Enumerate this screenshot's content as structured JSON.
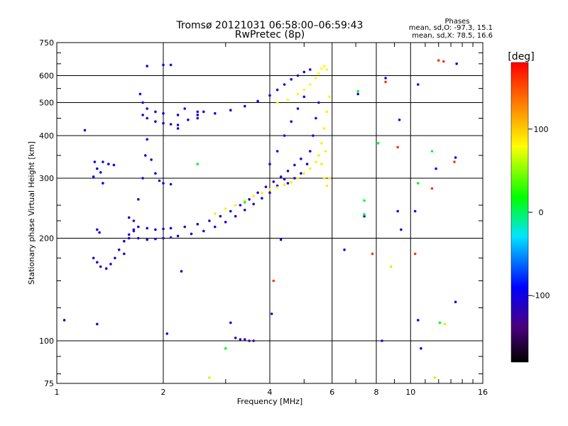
{
  "chart_data": {
    "type": "scatter",
    "title": "Tromsø 20121031 06:58:00–06:59:43",
    "subtitle": "RwPretec (8p)",
    "xlabel": "Frequency [MHz]",
    "ylabel": "Stationary phase Virtual Height [km]",
    "x_scale": "log",
    "y_scale": "log",
    "xlim": [
      1,
      16
    ],
    "ylim": [
      75,
      750
    ],
    "x_ticks": [
      1,
      2,
      4,
      6,
      8,
      10,
      16
    ],
    "x_tick_labels": [
      "1",
      "2",
      "4",
      "6",
      "8",
      "10",
      "16"
    ],
    "y_ticks": [
      75,
      100,
      200,
      300,
      400,
      500,
      600,
      750
    ],
    "y_tick_labels": [
      "75",
      "100",
      "200",
      "300",
      "400",
      "500",
      "600",
      "750"
    ],
    "grid": true,
    "phases_box": {
      "heading": "Phases",
      "line_o": "mean, sd,O: -97.3, 15.1",
      "line_x": "mean, sd,X: 78.5, 16.6"
    },
    "colorbar": {
      "label": "[deg]",
      "range": [
        -180,
        180
      ],
      "ticks": [
        100,
        0,
        -100
      ],
      "tick_labels": [
        "100",
        "0",
        "-100"
      ]
    },
    "series": [
      {
        "phase": -110,
        "points": [
          [
            1.27,
            175
          ],
          [
            1.3,
            170
          ],
          [
            1.33,
            165
          ],
          [
            1.38,
            163
          ],
          [
            1.42,
            168
          ],
          [
            1.46,
            175
          ],
          [
            1.5,
            185
          ],
          [
            1.55,
            196
          ],
          [
            1.6,
            205
          ],
          [
            1.65,
            212
          ],
          [
            1.7,
            216
          ],
          [
            1.8,
            214
          ],
          [
            1.9,
            212
          ],
          [
            2.0,
            213
          ],
          [
            2.1,
            214
          ],
          [
            2.3,
            216
          ],
          [
            2.5,
            220
          ],
          [
            2.7,
            225
          ],
          [
            2.9,
            232
          ],
          [
            3.1,
            240
          ],
          [
            3.3,
            250
          ],
          [
            3.5,
            260
          ],
          [
            3.7,
            272
          ],
          [
            3.9,
            283
          ],
          [
            4.1,
            293
          ],
          [
            4.3,
            303
          ],
          [
            4.5,
            315
          ],
          [
            4.7,
            328
          ],
          [
            4.9,
            342
          ]
        ]
      },
      {
        "phase": -105,
        "points": [
          [
            1.55,
            180
          ],
          [
            1.6,
            200
          ],
          [
            1.65,
            225
          ],
          [
            1.7,
            260
          ],
          [
            1.75,
            300
          ],
          [
            1.78,
            350
          ],
          [
            1.8,
            390
          ],
          [
            1.85,
            340
          ],
          [
            1.9,
            310
          ],
          [
            1.95,
            295
          ],
          [
            2.0,
            290
          ],
          [
            2.1,
            288
          ]
        ]
      },
      {
        "phase": -108,
        "points": [
          [
            1.6,
            230
          ],
          [
            1.65,
            210
          ],
          [
            1.7,
            200
          ],
          [
            1.8,
            198
          ],
          [
            1.9,
            199
          ],
          [
            2.0,
            200
          ],
          [
            2.1,
            201
          ],
          [
            2.2,
            203
          ],
          [
            2.4,
            206
          ],
          [
            2.6,
            210
          ],
          [
            2.8,
            216
          ],
          [
            3.0,
            223
          ],
          [
            3.2,
            232
          ],
          [
            3.4,
            242
          ],
          [
            3.6,
            252
          ],
          [
            3.8,
            262
          ],
          [
            4.0,
            272
          ],
          [
            4.2,
            285
          ],
          [
            4.4,
            298
          ]
        ]
      },
      {
        "phase": -100,
        "points": [
          [
            1.72,
            530
          ],
          [
            1.75,
            500
          ],
          [
            1.8,
            480
          ],
          [
            1.9,
            470
          ],
          [
            2.0,
            465
          ],
          [
            2.2,
            460
          ],
          [
            2.5,
            460
          ],
          [
            2.8,
            465
          ],
          [
            3.1,
            475
          ],
          [
            3.4,
            488
          ],
          [
            3.7,
            505
          ],
          [
            4.0,
            525
          ],
          [
            4.2,
            545
          ],
          [
            4.4,
            565
          ],
          [
            4.6,
            585
          ],
          [
            4.8,
            600
          ],
          [
            5.0,
            615
          ],
          [
            5.2,
            625
          ]
        ]
      },
      {
        "phase": -112,
        "points": [
          [
            1.75,
            460
          ],
          [
            1.8,
            450
          ],
          [
            1.9,
            440
          ],
          [
            2.0,
            435
          ],
          [
            2.1,
            432
          ],
          [
            2.2,
            430
          ],
          [
            2.35,
            445
          ],
          [
            2.5,
            450
          ]
        ]
      },
      {
        "phase": -102,
        "points": [
          [
            4.0,
            330
          ],
          [
            4.2,
            360
          ],
          [
            4.4,
            400
          ],
          [
            4.6,
            440
          ],
          [
            4.8,
            480
          ],
          [
            5.0,
            520
          ],
          [
            4.5,
            290
          ],
          [
            4.7,
            300
          ],
          [
            4.9,
            310
          ],
          [
            5.1,
            330
          ],
          [
            5.2,
            360
          ],
          [
            5.3,
            400
          ],
          [
            5.4,
            450
          ],
          [
            5.5,
            500
          ]
        ]
      },
      {
        "phase": 85,
        "points": [
          [
            2.8,
            236
          ],
          [
            3.0,
            244
          ],
          [
            3.2,
            250
          ],
          [
            3.4,
            258
          ],
          [
            3.6,
            266
          ],
          [
            3.8,
            272
          ],
          [
            4.0,
            278
          ],
          [
            4.2,
            282
          ],
          [
            4.4,
            287
          ],
          [
            4.6,
            292
          ],
          [
            4.8,
            300
          ],
          [
            5.0,
            310
          ],
          [
            5.2,
            320
          ],
          [
            5.4,
            335
          ],
          [
            5.5,
            350
          ],
          [
            5.6,
            380
          ],
          [
            5.7,
            420
          ],
          [
            5.8,
            470
          ],
          [
            5.9,
            520
          ],
          [
            5.6,
            330
          ],
          [
            5.7,
            300
          ],
          [
            5.8,
            285
          ],
          [
            5.9,
            300
          ],
          [
            5.75,
            360
          ]
        ]
      },
      {
        "phase": 80,
        "points": [
          [
            4.2,
            500
          ],
          [
            4.5,
            510
          ],
          [
            4.8,
            530
          ],
          [
            5.0,
            545
          ],
          [
            5.2,
            565
          ],
          [
            5.4,
            590
          ],
          [
            5.5,
            610
          ],
          [
            5.6,
            630
          ],
          [
            5.7,
            640
          ],
          [
            5.8,
            625
          ]
        ]
      },
      {
        "phase": -95,
        "points": [
          [
            1.28,
            335
          ],
          [
            1.35,
            335
          ],
          [
            1.4,
            330
          ],
          [
            1.45,
            328
          ],
          [
            1.3,
            320
          ],
          [
            1.33,
            312
          ],
          [
            1.27,
            303
          ],
          [
            1.35,
            290
          ],
          [
            1.3,
            212
          ],
          [
            1.32,
            208
          ],
          [
            1.8,
            640
          ],
          [
            2.0,
            645
          ],
          [
            2.1,
            645
          ],
          [
            2.3,
            480
          ],
          [
            2.5,
            470
          ],
          [
            2.6,
            470
          ],
          [
            2.2,
            420
          ]
        ]
      },
      {
        "phase": -120,
        "points": [
          [
            3.3,
            101
          ],
          [
            3.4,
            101
          ],
          [
            3.5,
            100
          ],
          [
            3.6,
            100
          ],
          [
            3.2,
            102
          ]
        ]
      }
    ],
    "outliers": [
      {
        "phase": -100,
        "points": [
          [
            1.05,
            115
          ],
          [
            1.3,
            112
          ],
          [
            1.2,
            415
          ],
          [
            2.05,
            105
          ],
          [
            2.25,
            160
          ],
          [
            3.1,
            113
          ],
          [
            4.05,
            120
          ],
          [
            4.3,
            198
          ],
          [
            6.5,
            185
          ],
          [
            7.4,
            232
          ],
          [
            8.3,
            100
          ],
          [
            9.2,
            240
          ],
          [
            9.3,
            445
          ],
          [
            9.4,
            212
          ],
          [
            10.3,
            240
          ],
          [
            10.5,
            115
          ],
          [
            10.7,
            95
          ],
          [
            13.5,
            650
          ],
          [
            13.4,
            130
          ],
          [
            11.8,
            320
          ],
          [
            7.1,
            530
          ],
          [
            8.5,
            590
          ],
          [
            10.5,
            565
          ],
          [
            13.4,
            345
          ]
        ]
      },
      {
        "phase": 160,
        "points": [
          [
            4.1,
            150
          ],
          [
            8.5,
            575
          ],
          [
            7.8,
            180
          ],
          [
            10.3,
            180
          ],
          [
            11.5,
            280
          ],
          [
            12.0,
            665
          ],
          [
            12.4,
            660
          ],
          [
            13.3,
            335
          ],
          [
            9.2,
            370
          ]
        ]
      },
      {
        "phase": 10,
        "points": [
          [
            2.5,
            330
          ],
          [
            3.0,
            95
          ],
          [
            3.4,
            255
          ],
          [
            7.4,
            258
          ],
          [
            7.4,
            235
          ],
          [
            8.1,
            380
          ],
          [
            10.5,
            290
          ],
          [
            11.5,
            360
          ],
          [
            12.1,
            113
          ],
          [
            7.1,
            540
          ]
        ]
      },
      {
        "phase": 65,
        "points": [
          [
            2.7,
            78
          ],
          [
            8.8,
            165
          ],
          [
            11.7,
            78
          ],
          [
            12.5,
            112
          ]
        ]
      }
    ]
  }
}
